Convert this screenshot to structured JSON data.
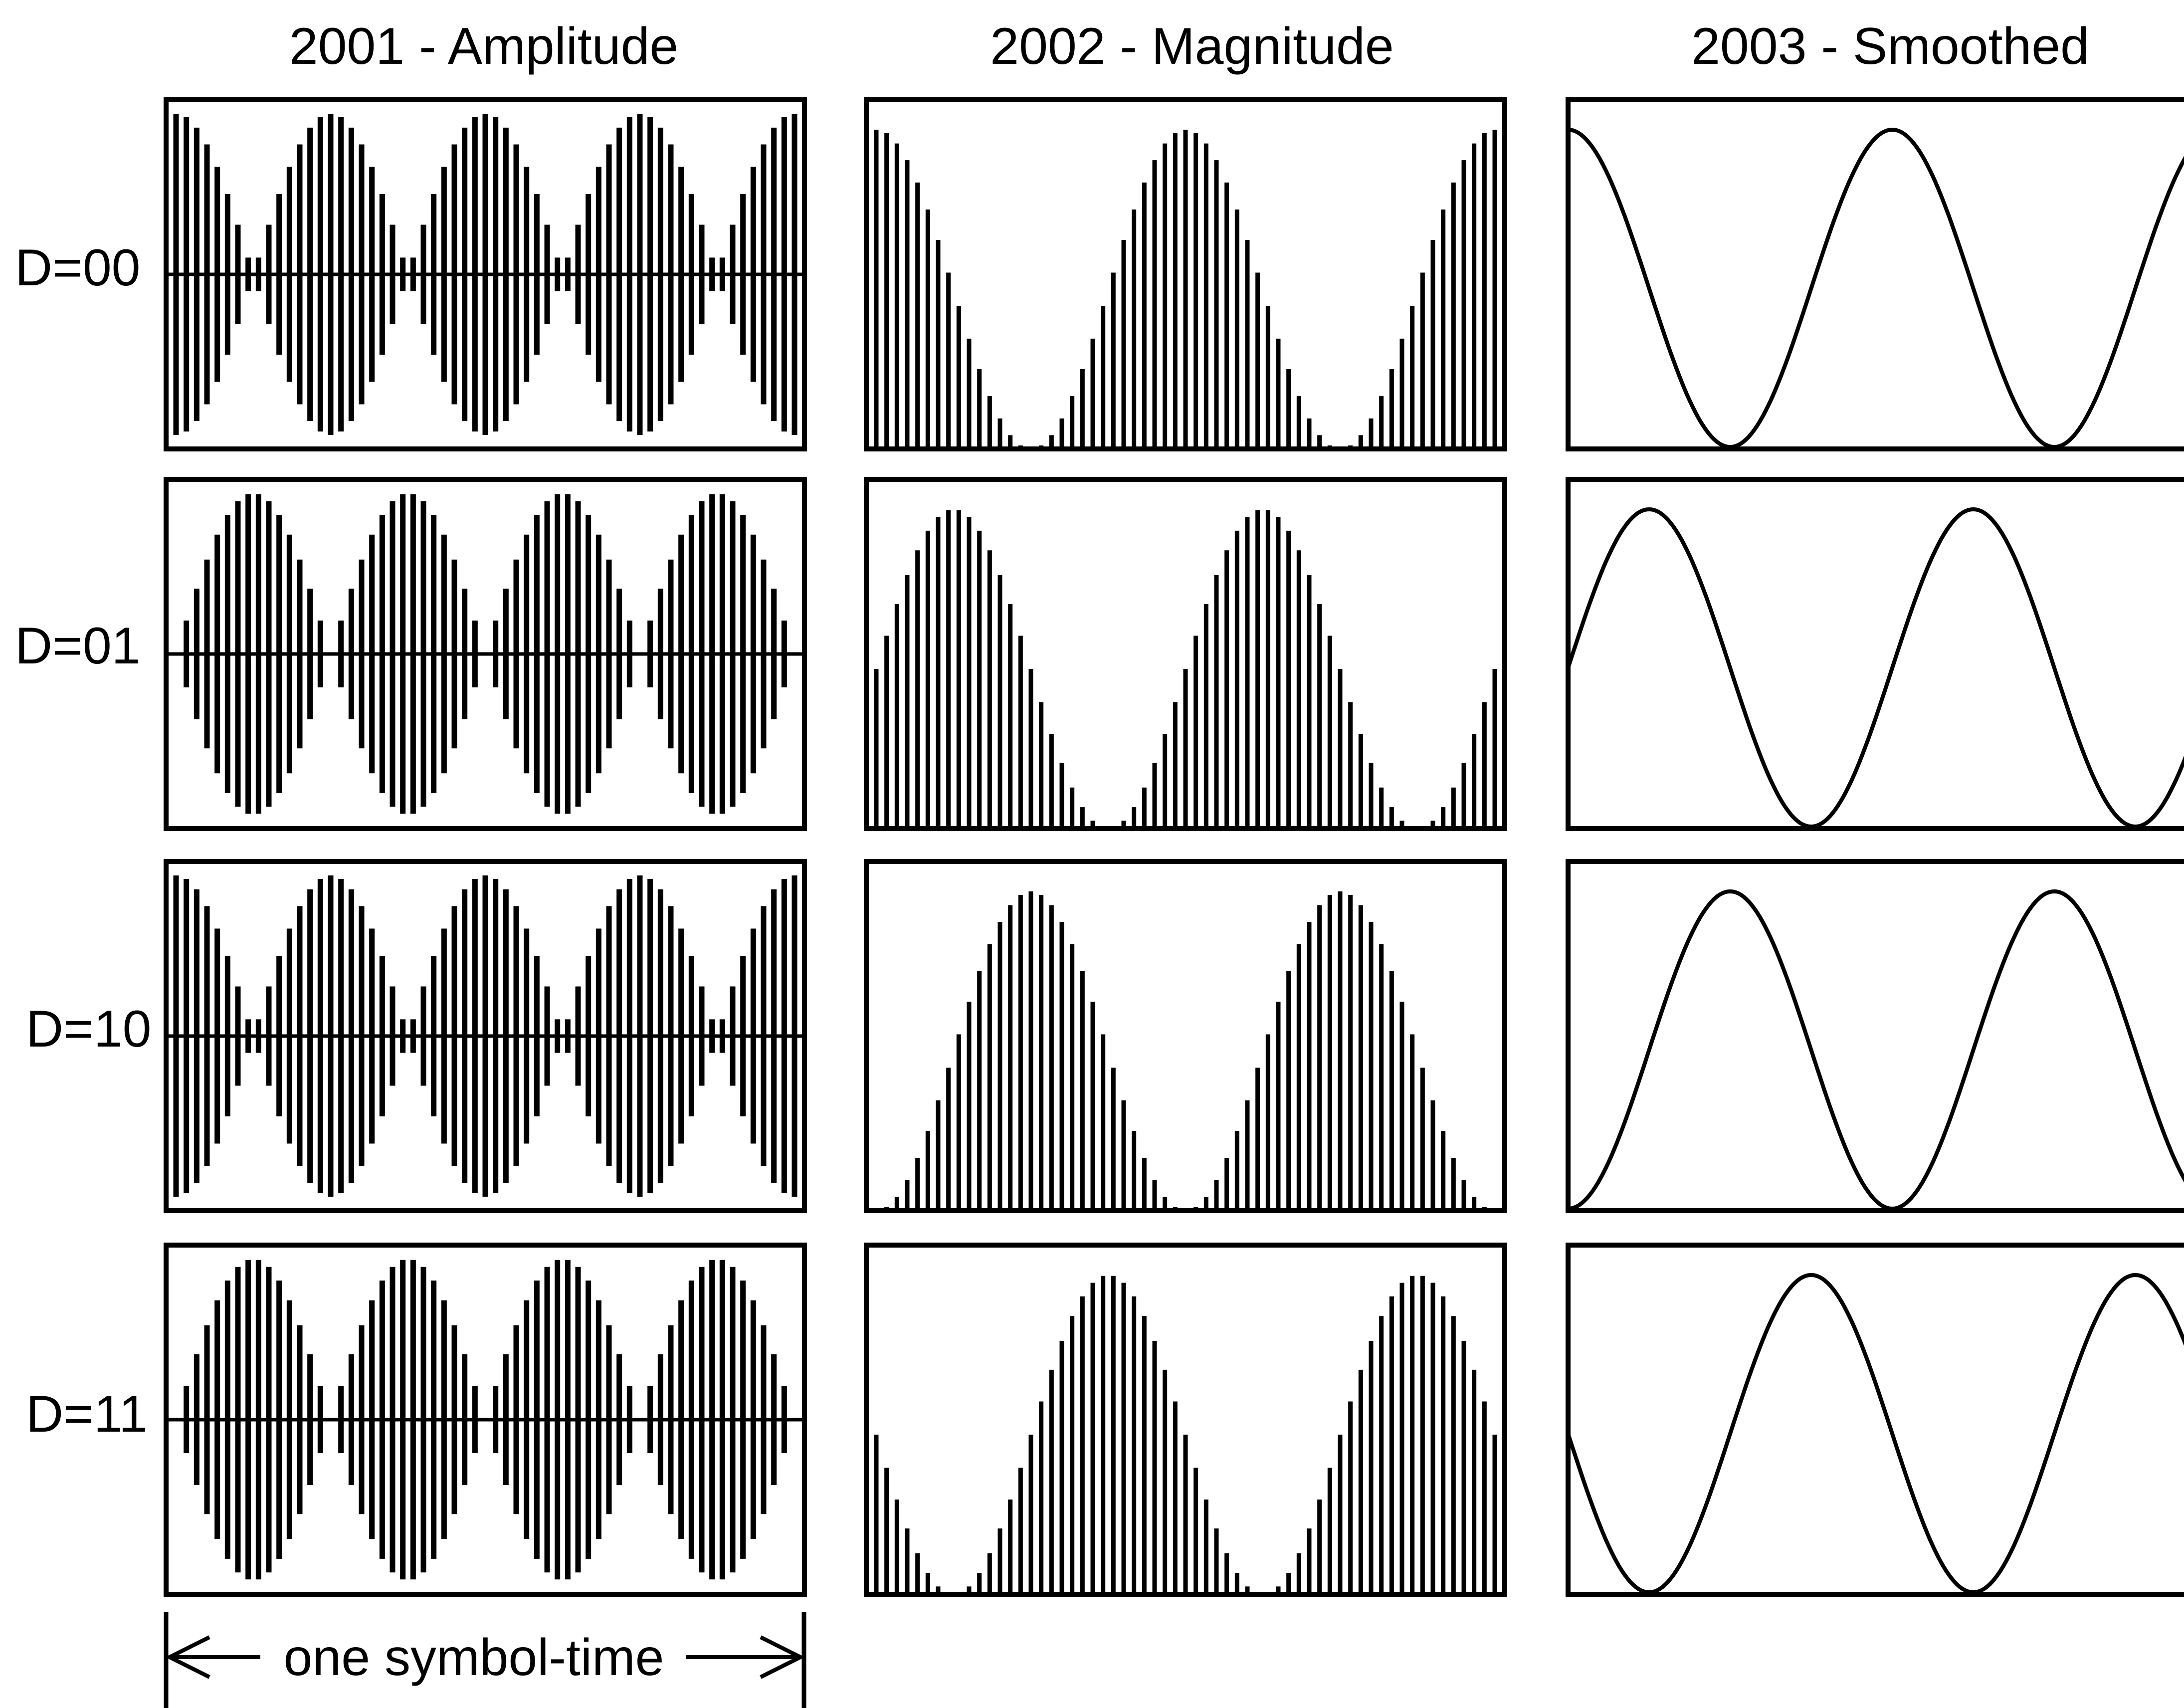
{
  "columns": [
    {
      "title": "2001 - Amplitude",
      "kind": "amplitude"
    },
    {
      "title": "2002 - Magnitude",
      "kind": "magnitude"
    },
    {
      "title": "2003 - Smoothed",
      "kind": "smoothed"
    }
  ],
  "rows": [
    {
      "label": "D=00",
      "phase_deg": 0
    },
    {
      "label": "D=01",
      "phase_deg": 90
    },
    {
      "label": "D=10",
      "phase_deg": 180
    },
    {
      "label": "D=11",
      "phase_deg": 270
    }
  ],
  "signal": {
    "envelope_cycles_per_symbol": 2,
    "carrier_lines_per_panel": 60
  },
  "timing": {
    "label": "one symbol-time"
  },
  "colors": {
    "ink": "#000000",
    "background": "#ffffff"
  }
}
